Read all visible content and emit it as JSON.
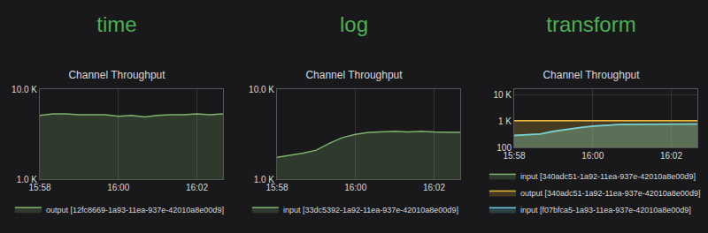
{
  "chart_data": [
    {
      "type": "area",
      "title": "time",
      "subtitle": "Channel Throughput",
      "categories": [
        "15:58",
        null,
        null,
        null,
        null,
        null,
        "16:00",
        null,
        null,
        null,
        null,
        null,
        "16:02",
        null,
        null
      ],
      "series": [
        {
          "name": "output [12fc8669-1a93-11ea-937e-42010a8e00d9]",
          "color": "#7eb26d",
          "values": [
            5100,
            5300,
            5300,
            5200,
            5200,
            5200,
            5000,
            5100,
            4900,
            5100,
            5200,
            5200,
            5300,
            5200,
            5300
          ]
        }
      ],
      "log": "y",
      "ylim": [
        1000,
        10000
      ],
      "yticks": [
        {
          "value": 1000,
          "label": "1.0 K"
        },
        {
          "value": 10000,
          "label": "10.0 K"
        }
      ],
      "grid": true,
      "legend": "bottom"
    },
    {
      "type": "area",
      "title": "log",
      "subtitle": "Channel Throughput",
      "categories": [
        "15:58",
        null,
        null,
        null,
        null,
        null,
        "16:00",
        null,
        null,
        null,
        null,
        null,
        "16:02",
        null,
        null
      ],
      "series": [
        {
          "name": "input [33dc5392-1a92-11ea-937e-42010a8e00d9]",
          "color": "#7eb26d",
          "values": [
            1750,
            1850,
            1950,
            2100,
            2500,
            2900,
            3150,
            3300,
            3350,
            3400,
            3350,
            3400,
            3350,
            3350,
            3300
          ]
        }
      ],
      "log": "y",
      "ylim": [
        1000,
        10000
      ],
      "yticks": [
        {
          "value": 1000,
          "label": "1.0 K"
        },
        {
          "value": 10000,
          "label": "10.0 K"
        }
      ],
      "grid": true,
      "legend": "bottom"
    },
    {
      "type": "area",
      "title": "transform",
      "subtitle": "Channel Throughput",
      "categories": [
        "15:58",
        null,
        null,
        null,
        null,
        null,
        "16:00",
        null,
        null,
        null,
        null,
        null,
        "16:02",
        null,
        null
      ],
      "series": [
        {
          "name": "input [340adc51-1a92-11ea-937e-42010a8e00d9]",
          "color": "#7eb26d",
          "values": [
            280,
            300,
            320,
            400,
            480,
            560,
            640,
            700,
            740,
            760,
            770,
            780,
            770,
            780,
            780
          ]
        },
        {
          "name": "output [340adc51-1a92-11ea-937e-42010a8e00d9]",
          "color": "#eab839",
          "values": [
            1050,
            1060,
            1050,
            1060,
            1050,
            1060,
            1050,
            1060,
            1050,
            1050,
            1060,
            1050,
            1060,
            1050,
            1060
          ]
        },
        {
          "name": "input [f07bfca5-1a93-11ea-937e-42010a8e00d9]",
          "color": "#6ed0e0",
          "values": [
            290,
            310,
            330,
            420,
            500,
            580,
            660,
            720,
            750,
            770,
            780,
            790,
            780,
            790,
            790
          ]
        }
      ],
      "log": "y",
      "ylim": [
        100,
        17000
      ],
      "yticks": [
        100,
        {
          "value": 1000,
          "label": "1 K"
        },
        {
          "value": 10000,
          "label": "10 K"
        }
      ],
      "grid": true,
      "legend": "bottom"
    }
  ]
}
